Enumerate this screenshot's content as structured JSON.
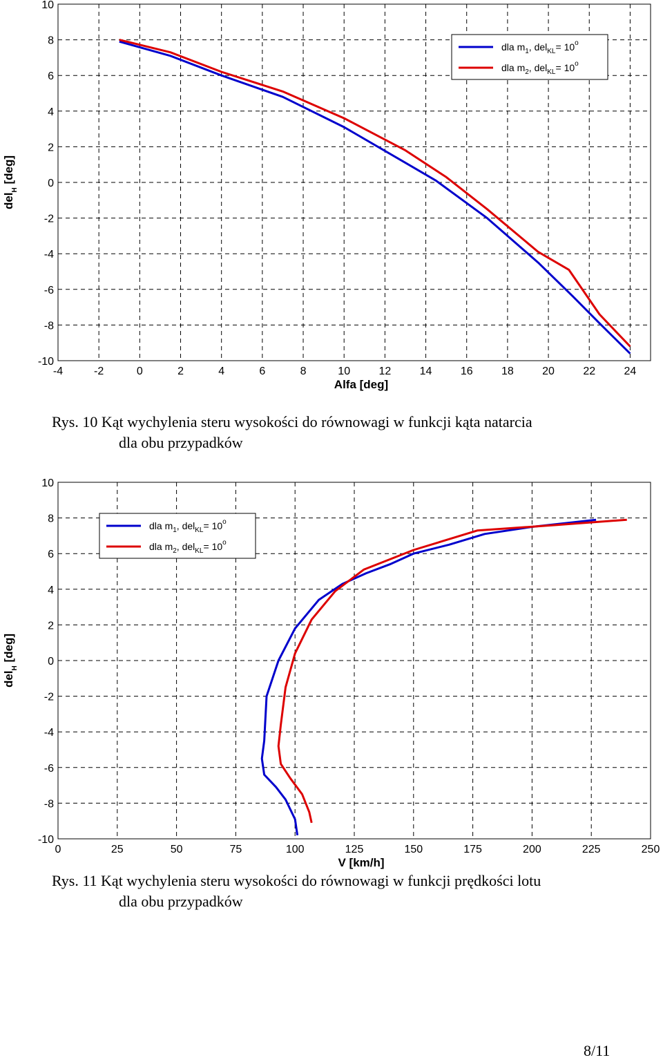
{
  "chart_data": [
    {
      "type": "line",
      "xlabel": "Alfa [deg]",
      "ylabel": "del",
      "ylabel_sub": "H",
      "ylabel_rest": " [deg]",
      "xlim": [
        -4,
        25
      ],
      "ylim": [
        -10,
        10
      ],
      "xticks": [
        -4,
        -2,
        0,
        2,
        4,
        6,
        8,
        10,
        12,
        14,
        16,
        18,
        20,
        22,
        24
      ],
      "yticks": [
        -10,
        -8,
        -6,
        -4,
        -2,
        0,
        2,
        4,
        6,
        8,
        10
      ],
      "grid": true,
      "legend_position": "top-right",
      "series": [
        {
          "name": "dla m1, delKL= 10o",
          "legend": {
            "pre": "dla m",
            "sub1": "1",
            "mid": ", del",
            "sub2": "KL",
            "post": "= 10",
            "sup": "o"
          },
          "color": "#0000cc",
          "x": [
            -1,
            1.5,
            4,
            7,
            10,
            13,
            14.5,
            17,
            19.5,
            21.2,
            22.5,
            24
          ],
          "y": [
            7.9,
            7.1,
            6.0,
            4.8,
            3.1,
            1.1,
            0.1,
            -2.0,
            -4.5,
            -6.4,
            -7.9,
            -9.6
          ]
        },
        {
          "name": "dla m2, delKL= 10o",
          "legend": {
            "pre": "dla m",
            "sub1": "2",
            "mid": ", del",
            "sub2": "KL",
            "post": "= 10",
            "sup": "o"
          },
          "color": "#dd0000",
          "x": [
            -1,
            1.5,
            4,
            7,
            10,
            13,
            15,
            17,
            19.5,
            21,
            22.5,
            24
          ],
          "y": [
            8.0,
            7.3,
            6.2,
            5.1,
            3.6,
            1.8,
            0.3,
            -1.5,
            -3.9,
            -4.9,
            -7.4,
            -9.2
          ]
        }
      ]
    },
    {
      "type": "line",
      "xlabel": "V [km/h]",
      "ylabel": "del",
      "ylabel_sub": "H",
      "ylabel_rest": " [deg]",
      "xlim": [
        0,
        250
      ],
      "ylim": [
        -10,
        10
      ],
      "xticks": [
        0,
        25,
        50,
        75,
        100,
        125,
        150,
        175,
        200,
        225,
        250
      ],
      "yticks": [
        -10,
        -8,
        -6,
        -4,
        -2,
        0,
        2,
        4,
        6,
        8,
        10
      ],
      "grid": true,
      "legend_position": "top-left",
      "series": [
        {
          "name": "dla m1, delKL= 10o",
          "legend": {
            "pre": "dla m",
            "sub1": "1",
            "mid": ", del",
            "sub2": "KL",
            "post": "= 10",
            "sup": "o"
          },
          "color": "#0000cc",
          "x": [
            101,
            100,
            96,
            92,
            87,
            86,
            87,
            88,
            93,
            100,
            110,
            120,
            130,
            140,
            150,
            165,
            180,
            200,
            227
          ],
          "y": [
            -9.8,
            -8.9,
            -7.8,
            -7.1,
            -6.4,
            -5.5,
            -4.5,
            -2.0,
            0.0,
            1.8,
            3.4,
            4.3,
            4.9,
            5.4,
            6.0,
            6.5,
            7.1,
            7.5,
            7.9
          ]
        },
        {
          "name": "dla m2, delKL= 10o",
          "legend": {
            "pre": "dla m",
            "sub1": "2",
            "mid": ", del",
            "sub2": "KL",
            "post": "= 10",
            "sup": "o"
          },
          "color": "#dd0000",
          "x": [
            107,
            106,
            103,
            98,
            94,
            93,
            94,
            96,
            100,
            107,
            117,
            129,
            150,
            177,
            210,
            240
          ],
          "y": [
            -9.1,
            -8.5,
            -7.5,
            -6.6,
            -5.8,
            -4.8,
            -3.6,
            -1.5,
            0.4,
            2.3,
            3.9,
            5.1,
            6.2,
            7.3,
            7.6,
            7.9
          ]
        }
      ]
    }
  ],
  "captions": [
    {
      "line1": "Rys. 10 Kąt wychylenia steru wysokości do równowagi w funkcji kąta natarcia",
      "line2": "dla obu przypadków"
    },
    {
      "line1": "Rys. 11 Kąt wychylenia steru wysokości do równowagi w funkcji prędkości lotu",
      "line2": "dla obu przypadków"
    }
  ],
  "page_number": "8/11"
}
